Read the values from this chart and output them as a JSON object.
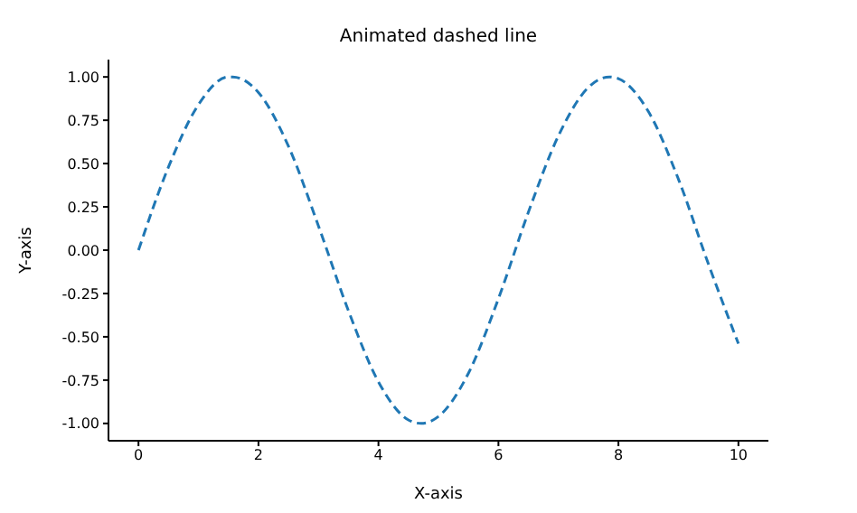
{
  "chart_data": {
    "type": "line",
    "title": "Animated dashed line",
    "xlabel": "X-axis",
    "ylabel": "Y-axis",
    "x": [
      0,
      0.5,
      1,
      1.5,
      1.57,
      2,
      2.5,
      3,
      3.5,
      4,
      4.5,
      4.71,
      5,
      5.5,
      6,
      6.5,
      7,
      7.5,
      7.85,
      8,
      8.5,
      9,
      9.5,
      10
    ],
    "series": [
      {
        "color": "#1f77b4",
        "values": [
          0,
          0.48,
          0.84,
          1.0,
          1.0,
          0.91,
          0.6,
          0.14,
          -0.35,
          -0.76,
          -0.98,
          -1.0,
          -0.96,
          -0.71,
          -0.28,
          0.22,
          0.66,
          0.94,
          1.0,
          0.99,
          0.8,
          0.41,
          -0.08,
          -0.54
        ]
      }
    ],
    "line_style": "dashed",
    "xlim": [
      -0.5,
      10.5
    ],
    "xticks": [
      0,
      2,
      4,
      6,
      8,
      10
    ],
    "ylim": [
      -1.1,
      1.1
    ],
    "yticks": [
      {
        "value": -1,
        "label": "-1.00"
      },
      {
        "value": -0.75,
        "label": "-0.75"
      },
      {
        "value": -0.5,
        "label": "-0.50"
      },
      {
        "value": -0.25,
        "label": "-0.25"
      },
      {
        "value": 0,
        "label": "0.00"
      },
      {
        "value": 0.25,
        "label": "0.25"
      },
      {
        "value": 0.5,
        "label": "0.50"
      },
      {
        "value": 0.75,
        "label": "0.75"
      },
      {
        "value": 1,
        "label": "1.00"
      }
    ]
  }
}
